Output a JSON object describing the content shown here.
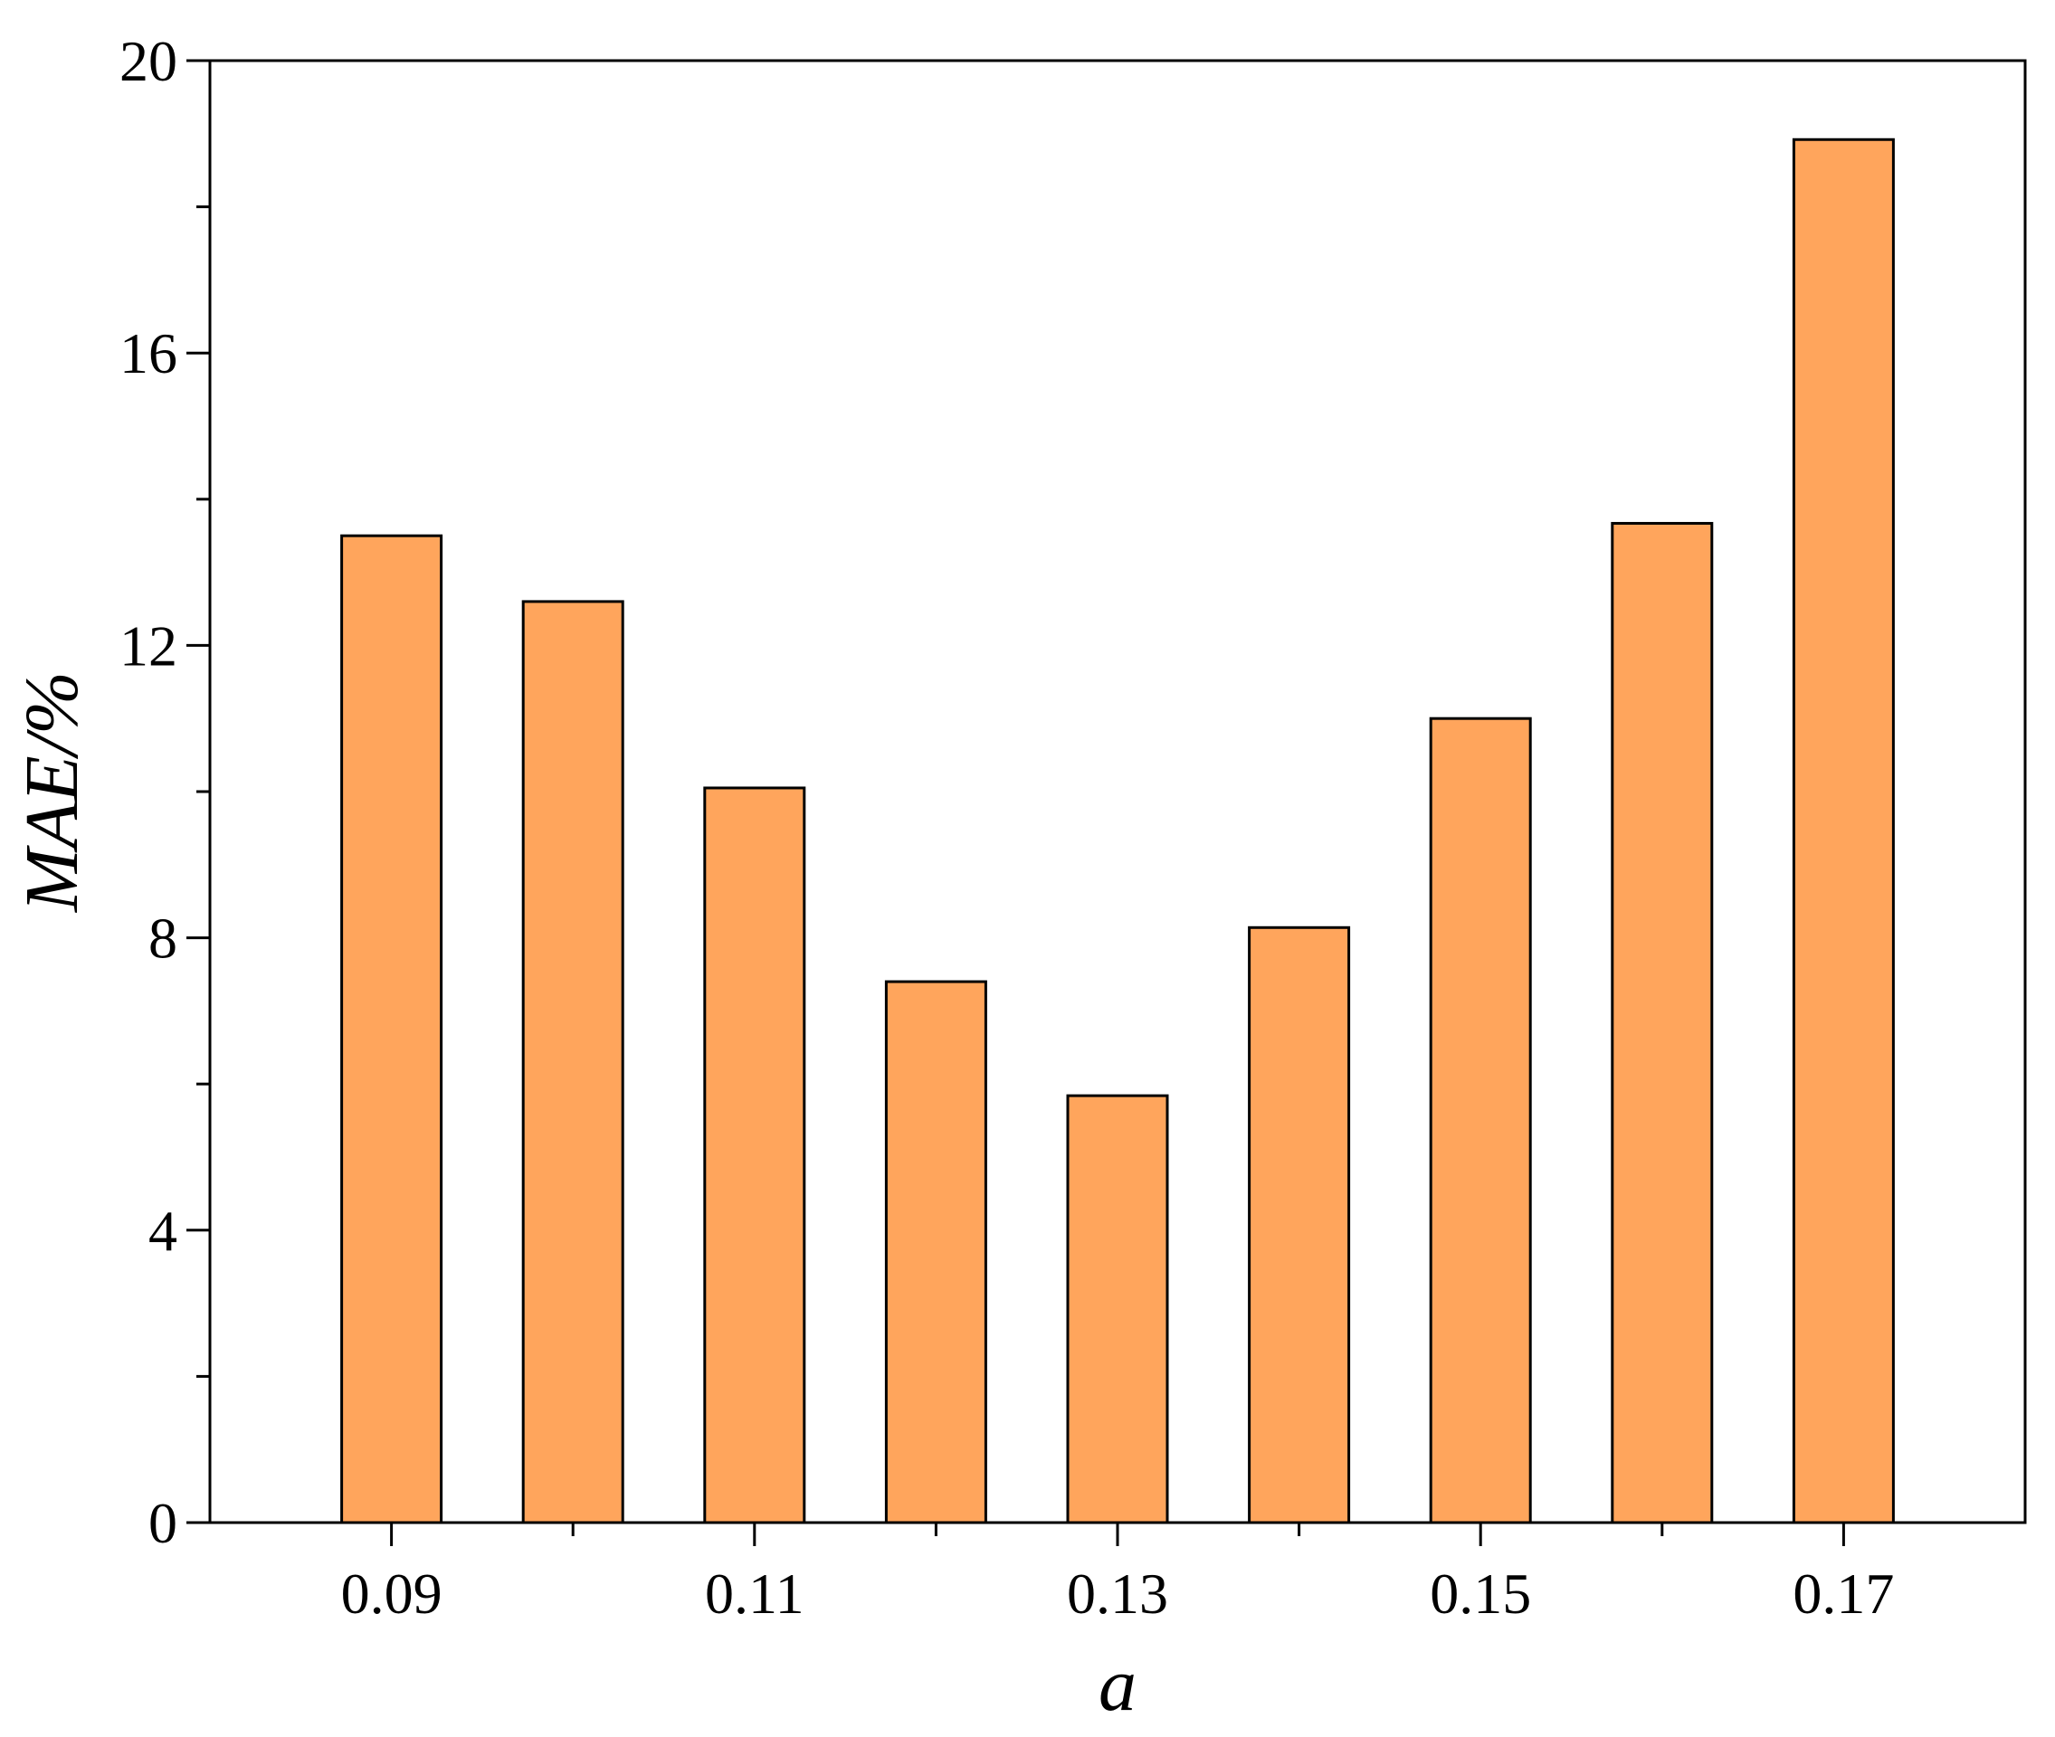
{
  "chart_data": {
    "type": "bar",
    "x_label": "a",
    "y_label": "MAE/%",
    "x": [
      0.09,
      0.1,
      0.11,
      0.12,
      0.13,
      0.14,
      0.15,
      0.16,
      0.17
    ],
    "values": [
      13.5,
      12.6,
      10.05,
      7.4,
      5.84,
      8.14,
      11.0,
      13.67,
      18.92
    ],
    "color": "#ffa55c",
    "xlim": [
      0.08,
      0.18
    ],
    "xticks": [
      0.09,
      0.11,
      0.13,
      0.15,
      0.17
    ],
    "xminorticks": [
      0.1,
      0.12,
      0.14,
      0.16
    ],
    "ylim": [
      0,
      20
    ],
    "yticks": [
      0,
      4,
      8,
      12,
      16,
      20
    ],
    "yminorticks": [
      2,
      6,
      10,
      14,
      18
    ]
  }
}
